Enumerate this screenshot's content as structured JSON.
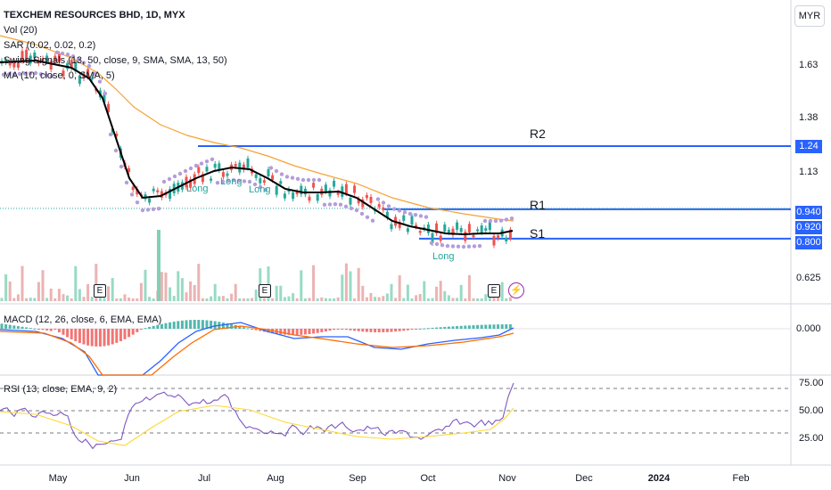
{
  "legend": {
    "title": "TEXCHEM RESOURCES BHD, 1D, MYX",
    "vol": "Vol (20)",
    "sar": "SAR (0.02, 0.02, 0.2)",
    "swing": "Swing Signals (13, 50, close, 9, SMA, SMA, 13, 50)",
    "ma": "MA (10, close, 0, SMA, 5)",
    "macd": "MACD (12, 26, close, 6, EMA, EMA)",
    "rsi": "RSI (13, close, EMA, 9, 2)"
  },
  "currency": "MYR",
  "price_axis": [
    "1.63",
    "1.38",
    "1.13",
    "0.625"
  ],
  "macd_axis": [
    "0.000"
  ],
  "rsi_axis": [
    "75.00",
    "50.00",
    "25.00"
  ],
  "price_tags": [
    {
      "label": "1.24",
      "color": "#2962ff"
    },
    {
      "label": "0.940",
      "color": "#2962ff"
    },
    {
      "label": "0.920",
      "color": "#2962ff"
    },
    {
      "label": "0.800",
      "color": "#2962ff"
    }
  ],
  "levels": [
    "R2",
    "R1",
    "S1"
  ],
  "long_signals": [
    "Long",
    "Long",
    "Long",
    "Long"
  ],
  "earnings_marker": "E",
  "months": [
    "May",
    "Jun",
    "Jul",
    "Aug",
    "Sep",
    "Oct",
    "Nov",
    "Dec",
    "2024",
    "Feb"
  ],
  "colors": {
    "up": "#26a69a",
    "down": "#ef5350",
    "level_line": "#2962ff",
    "ma": "#000000",
    "sma_orange": "#f7a233",
    "sar": "#b39ddb",
    "macd_line": "#2962ff",
    "signal_line": "#ff6d00",
    "rsi_line": "#7e57c2",
    "rsi_ma": "#fdd835"
  },
  "chart_data": {
    "type": "line",
    "title": "TEXCHEM RESOURCES BHD, 1D, MYX",
    "ylabel": "MYR",
    "x": [
      "May",
      "Jun",
      "Jul",
      "Aug",
      "Sep",
      "Oct",
      "Nov"
    ],
    "series": [
      {
        "name": "MA (10, close, 0, SMA, 5)",
        "values": [
          1.64,
          1.05,
          1.17,
          1.07,
          0.93,
          0.83,
          0.87
        ]
      }
    ],
    "levels": {
      "R2": 1.24,
      "R1": 0.94,
      "S1": 0.8
    },
    "last_close": 0.94,
    "ylim": [
      0.55,
      1.78
    ],
    "rsi_last": 75,
    "grid": false,
    "legend_position": "top-left"
  }
}
